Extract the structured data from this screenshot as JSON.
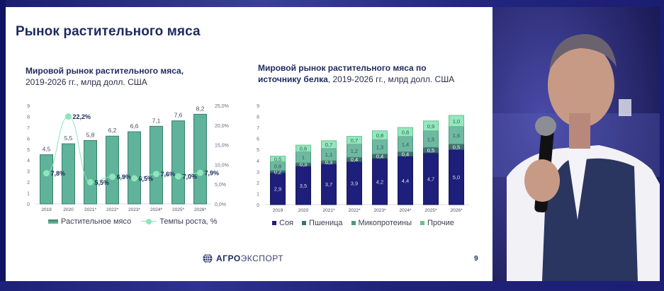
{
  "slide": {
    "title": "Рынок растительного мяса",
    "page_number": "9",
    "logo": {
      "icon": "globe-icon",
      "text_bold": "АГРО",
      "text_light": "ЭКСПОРТ"
    }
  },
  "left_chart": {
    "subtitle_bold": "Мировой рынок растительного мяса,",
    "subtitle_rest": "2019-2026 гг., млрд долл. США"
  },
  "right_chart": {
    "subtitle_bold_1": "Мировой рынок растительного мяса по",
    "subtitle_bold_2": "источнику белка",
    "subtitle_rest": ", 2019-2026 гг., млрд долл. США"
  },
  "video": {
    "description": "speaker with microphone",
    "icon": "speaker-video"
  },
  "colors": {
    "bar_green": "#5fb39a",
    "bar_green_dark": "#3d7f6b",
    "growth_line": "#8ee6bc",
    "soy": "#1d1f7a",
    "wheat": "#3e6f73",
    "myco": "#6fb8a2",
    "other": "#93e8bf",
    "title": "#1e2a5e"
  },
  "chart_data": [
    {
      "type": "bar",
      "title": "Мировой рынок растительного мяса, 2019-2026 гг., млрд долл. США",
      "categories": [
        "2019",
        "2020",
        "2021*",
        "2022*",
        "2023*",
        "2024*",
        "2025*",
        "2026*"
      ],
      "series": [
        {
          "name": "Растительное мясо",
          "type": "bar",
          "axis": "left",
          "values": [
            4.5,
            5.5,
            5.8,
            6.2,
            6.6,
            7.1,
            7.6,
            8.2
          ],
          "labels": [
            "4,5",
            "5,5",
            "5,8",
            "6,2",
            "6,6",
            "7,1",
            "7,6",
            "8,2"
          ]
        },
        {
          "name": "Темпы роста, %",
          "type": "line",
          "axis": "right",
          "values": [
            7.8,
            22.2,
            5.5,
            6.9,
            6.5,
            7.6,
            7.0,
            7.9
          ],
          "labels": [
            "7,8%",
            "22,2%",
            "5,5%",
            "6,9%",
            "6,5%",
            "7,6%",
            "7,0%",
            "7,9%"
          ]
        }
      ],
      "ylim": [
        0,
        9
      ],
      "yticks": [
        "0",
        "1",
        "2",
        "3",
        "4",
        "5",
        "6",
        "7",
        "8",
        "9"
      ],
      "y2lim": [
        0,
        25
      ],
      "y2ticks": [
        "0,0%",
        "5,0%",
        "10,0%",
        "15,0%",
        "20,0%",
        "25,0%"
      ],
      "legend": [
        "Растительное мясо",
        "Темпы роста, %"
      ],
      "legend_position": "bottom",
      "grid": false
    },
    {
      "type": "bar",
      "stacked": true,
      "title": "Мировой рынок растительного мяса по источнику белка, 2019-2026 гг., млрд долл. США",
      "categories": [
        "2019",
        "2020",
        "2021*",
        "2022*",
        "2023*",
        "2024*",
        "2025*",
        "2026*"
      ],
      "series": [
        {
          "name": "Соя",
          "values": [
            2.9,
            3.5,
            3.7,
            3.9,
            4.2,
            4.4,
            4.7,
            5.0
          ],
          "labels": [
            "2,9",
            "3,5",
            "3,7",
            "3,9",
            "4,2",
            "4,4",
            "4,7",
            "5,0"
          ]
        },
        {
          "name": "Пшеница",
          "values": [
            0.2,
            0.3,
            0.3,
            0.4,
            0.4,
            0.4,
            0.5,
            0.5
          ],
          "labels": [
            "0,2",
            "0,3",
            "0,3",
            "0,4",
            "0,4",
            "0,4",
            "0,5",
            "0,5"
          ]
        },
        {
          "name": "Микопротеины",
          "values": [
            0.8,
            1.0,
            1.1,
            1.2,
            1.3,
            1.4,
            1.5,
            1.6
          ],
          "labels": [
            "0,8",
            "1",
            "1,1",
            "1,2",
            "1,3",
            "1,4",
            "1,5",
            "1,6"
          ]
        },
        {
          "name": "Прочие",
          "values": [
            0.5,
            0.6,
            0.7,
            0.7,
            0.8,
            0.8,
            0.9,
            1.0
          ],
          "labels": [
            "0,5",
            "0,6",
            "0,7",
            "0,7",
            "0,8",
            "0,8",
            "0,9",
            "1,0"
          ]
        }
      ],
      "ylim": [
        0,
        9
      ],
      "yticks": [
        "0",
        "1",
        "2",
        "3",
        "4",
        "5",
        "6",
        "7",
        "8",
        "9"
      ],
      "legend": [
        "Соя",
        "Пшеница",
        "Микопротеины",
        "Прочие"
      ],
      "legend_position": "bottom",
      "grid": false
    }
  ]
}
